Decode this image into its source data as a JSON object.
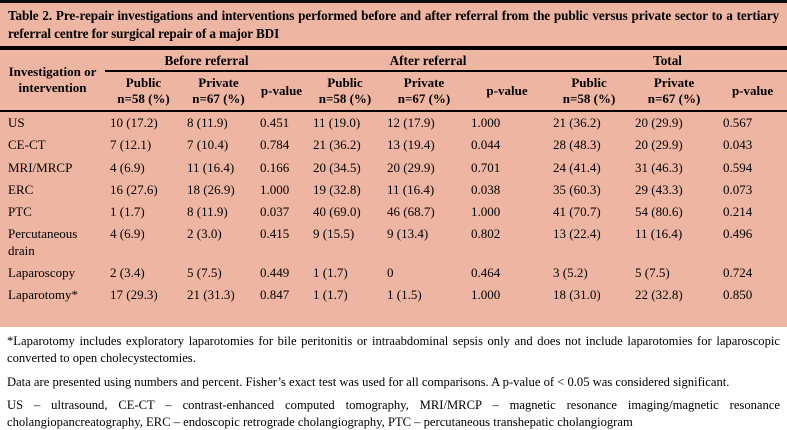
{
  "page": {
    "background_color": "#ffffff",
    "table_background_color": "#eeb6a2",
    "rule_color": "#000000"
  },
  "table": {
    "title": "Table 2. Pre-repair investigations and interventions performed before and after referral from the public versus private sector to a tertiary referral centre for surgical repair of a major BDI",
    "row_header": "Investigation or intervention",
    "group_headers": [
      "Before referral",
      "After referral",
      "Total"
    ],
    "column_headers": [
      {
        "top": "Public",
        "sub": "n=58 (%)"
      },
      {
        "top": "Private",
        "sub": "n=67 (%)"
      },
      {
        "top": "p-value",
        "sub": ""
      },
      {
        "top": "Public",
        "sub": "n=58 (%)"
      },
      {
        "top": "Private",
        "sub": "n=67 (%)"
      },
      {
        "top": "p-value",
        "sub": ""
      },
      {
        "top": "Public",
        "sub": "n=58 (%)"
      },
      {
        "top": "Private",
        "sub": "n=67 (%)"
      },
      {
        "top": "p-value",
        "sub": ""
      }
    ],
    "rows": [
      {
        "label": "US",
        "cells": [
          "10 (17.2)",
          "8 (11.9)",
          "0.451",
          "11 (19.0)",
          "12 (17.9)",
          "1.000",
          "21 (36.2)",
          "20 (29.9)",
          "0.567"
        ]
      },
      {
        "label": "CE-CT",
        "cells": [
          "7 (12.1)",
          "7 (10.4)",
          "0.784",
          "21 (36.2)",
          "13 (19.4)",
          "0.044",
          "28 (48.3)",
          "20 (29.9)",
          "0.043"
        ]
      },
      {
        "label": "MRI/MRCP",
        "cells": [
          "4 (6.9)",
          "11 (16.4)",
          "0.166",
          "20 (34.5)",
          "20 (29.9)",
          "0.701",
          "24 (41.4)",
          "31 (46.3)",
          "0.594"
        ]
      },
      {
        "label": "ERC",
        "cells": [
          "16 (27.6)",
          "18 (26.9)",
          "1.000",
          "19 (32.8)",
          "11 (16.4)",
          "0.038",
          "35 (60.3)",
          "29 (43.3)",
          "0.073"
        ]
      },
      {
        "label": "PTC",
        "cells": [
          "1 (1.7)",
          "8 (11.9)",
          "0.037",
          "40 (69.0)",
          "46 (68.7)",
          "1.000",
          "41 (70.7)",
          "54 (80.6)",
          "0.214"
        ]
      },
      {
        "label": "Percutaneous drain",
        "cells": [
          "4 (6.9)",
          "2 (3.0)",
          "0.415",
          "9 (15.5)",
          "9 (13.4)",
          "0.802",
          "13 (22.4)",
          "11 (16.4)",
          "0.496"
        ]
      },
      {
        "label": "Laparoscopy",
        "cells": [
          "2 (3.4)",
          "5 (7.5)",
          "0.449",
          "1 (1.7)",
          "0",
          "0.464",
          "3 (5.2)",
          "5 (7.5)",
          "0.724"
        ]
      },
      {
        "label": "Laparotomy*",
        "cells": [
          "17 (29.3)",
          "21 (31.3)",
          "0.847",
          "1 (1.7)",
          "1 (1.5)",
          "1.000",
          "18 (31.0)",
          "22 (32.8)",
          "0.850"
        ]
      }
    ]
  },
  "chart_data": {
    "type": "table",
    "title": "Table 2. Pre-repair investigations and interventions performed before and after referral from the public versus private sector to a tertiary referral centre for surgical repair of a major BDI",
    "column_groups": [
      "Before referral",
      "After referral",
      "Total"
    ],
    "columns": [
      "Investigation or intervention",
      "Before Public n=58 (%)",
      "Before Private n=67 (%)",
      "Before p-value",
      "After Public n=58 (%)",
      "After Private n=67 (%)",
      "After p-value",
      "Total Public n=58 (%)",
      "Total Private n=67 (%)",
      "Total p-value"
    ],
    "rows": [
      [
        "US",
        "10 (17.2)",
        "8 (11.9)",
        "0.451",
        "11 (19.0)",
        "12 (17.9)",
        "1.000",
        "21 (36.2)",
        "20 (29.9)",
        "0.567"
      ],
      [
        "CE-CT",
        "7 (12.1)",
        "7 (10.4)",
        "0.784",
        "21 (36.2)",
        "13 (19.4)",
        "0.044",
        "28 (48.3)",
        "20 (29.9)",
        "0.043"
      ],
      [
        "MRI/MRCP",
        "4 (6.9)",
        "11 (16.4)",
        "0.166",
        "20 (34.5)",
        "20 (29.9)",
        "0.701",
        "24 (41.4)",
        "31 (46.3)",
        "0.594"
      ],
      [
        "ERC",
        "16 (27.6)",
        "18 (26.9)",
        "1.000",
        "19 (32.8)",
        "11 (16.4)",
        "0.038",
        "35 (60.3)",
        "29 (43.3)",
        "0.073"
      ],
      [
        "PTC",
        "1 (1.7)",
        "8 (11.9)",
        "0.037",
        "40 (69.0)",
        "46 (68.7)",
        "1.000",
        "41 (70.7)",
        "54 (80.6)",
        "0.214"
      ],
      [
        "Percutaneous drain",
        "4 (6.9)",
        "2 (3.0)",
        "0.415",
        "9 (15.5)",
        "9 (13.4)",
        "0.802",
        "13 (22.4)",
        "11 (16.4)",
        "0.496"
      ],
      [
        "Laparoscopy",
        "2 (3.4)",
        "5 (7.5)",
        "0.449",
        "1 (1.7)",
        "0",
        "0.464",
        "3 (5.2)",
        "5 (7.5)",
        "0.724"
      ],
      [
        "Laparotomy*",
        "17 (29.3)",
        "21 (31.3)",
        "0.847",
        "1 (1.7)",
        "1 (1.5)",
        "1.000",
        "18 (31.0)",
        "22 (32.8)",
        "0.850"
      ]
    ]
  },
  "notes": [
    "*Laparotomy includes exploratory laparotomies for bile peritonitis or intraabdominal sepsis only and does not include laparotomies for laparoscopic converted to open cholecystectomies.",
    "Data are presented using numbers and percent. Fisher’s exact test was used for all comparisons. A p-value of < 0.05 was considered significant.",
    "US – ultrasound, CE-CT – contrast-enhanced computed tomography, MRI/MRCP – magnetic resonance imaging/magnetic resonance cholangiopancreatography, ERC – endoscopic retrograde cholangiography, PTC – percutaneous transhepatic cholangiogram"
  ]
}
